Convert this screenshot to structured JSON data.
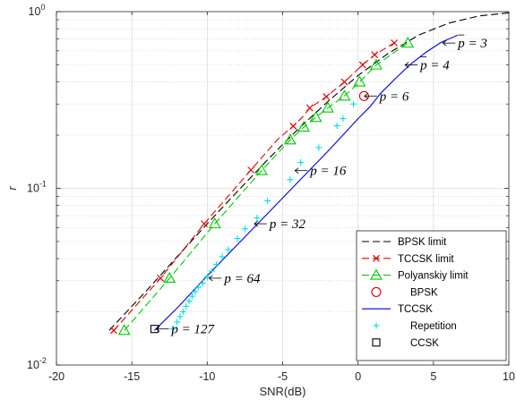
{
  "chart_data": {
    "type": "line",
    "xlabel": "SNR(dB)",
    "ylabel": "r",
    "xlim": [
      -20,
      10
    ],
    "ylim": [
      0.01,
      1
    ],
    "yscale": "log",
    "grid": true,
    "x_ticks": [
      "-20",
      "-15",
      "-10",
      "-5",
      "0",
      "5",
      "10"
    ],
    "y_ticks": [
      {
        "value": 0.01,
        "base": "10",
        "exp": "-2"
      },
      {
        "value": 0.1,
        "base": "10",
        "exp": "-1"
      },
      {
        "value": 1,
        "base": "10",
        "exp": "0"
      }
    ],
    "legend_position": "bottom-right",
    "series": [
      {
        "name": "BPSK limit",
        "color": "#000000",
        "style": "dashed",
        "marker": "none",
        "points": [
          [
            -16.5,
            0.0157
          ],
          [
            -14,
            0.0265
          ],
          [
            -12,
            0.041
          ],
          [
            -10,
            0.063
          ],
          [
            -8,
            0.096
          ],
          [
            -6,
            0.145
          ],
          [
            -4,
            0.215
          ],
          [
            -2,
            0.31
          ],
          [
            0,
            0.435
          ],
          [
            2,
            0.58
          ],
          [
            4,
            0.735
          ],
          [
            6,
            0.86
          ],
          [
            8,
            0.945
          ],
          [
            10,
            0.985
          ]
        ]
      },
      {
        "name": "TCCSK limit",
        "color": "#e00000",
        "style": "dashed",
        "marker": "x",
        "points": [
          [
            -16.2,
            0.0157
          ],
          [
            -13.1,
            0.031
          ],
          [
            -10.2,
            0.063
          ],
          [
            -7.1,
            0.127
          ],
          [
            -5.3,
            0.19
          ],
          [
            -4.3,
            0.225
          ],
          [
            -3.7,
            0.252
          ],
          [
            -3.2,
            0.285
          ],
          [
            -2.1,
            0.33
          ],
          [
            -0.9,
            0.4
          ],
          [
            0.3,
            0.5
          ],
          [
            1.1,
            0.57
          ],
          [
            2.4,
            0.665
          ]
        ],
        "marker_points": [
          [
            -16.2,
            0.0157
          ],
          [
            -13.1,
            0.031
          ],
          [
            -10.2,
            0.063
          ],
          [
            -7.1,
            0.127
          ],
          [
            -4.3,
            0.225
          ],
          [
            -3.2,
            0.285
          ],
          [
            -2.1,
            0.33
          ],
          [
            -0.9,
            0.4
          ],
          [
            0.3,
            0.5
          ],
          [
            1.1,
            0.57
          ],
          [
            2.4,
            0.665
          ]
        ]
      },
      {
        "name": "Polyanskiy limit",
        "color": "#00c800",
        "style": "dashed",
        "marker": "triangle",
        "points": [
          [
            -15.5,
            0.0157
          ],
          [
            -12.5,
            0.031
          ],
          [
            -9.5,
            0.063
          ],
          [
            -6.4,
            0.126
          ],
          [
            -4.5,
            0.188
          ],
          [
            -3.6,
            0.222
          ],
          [
            -2.8,
            0.252
          ],
          [
            -2.0,
            0.285
          ],
          [
            -0.9,
            0.333
          ],
          [
            0.1,
            0.4
          ],
          [
            1.2,
            0.499
          ],
          [
            3.3,
            0.664
          ]
        ]
      },
      {
        "name": "BPSK",
        "color": "#e00000",
        "style": "none",
        "marker": "circle",
        "points": [
          [
            0.4,
            0.333
          ]
        ]
      },
      {
        "name": "TCCSK",
        "color": "#0000e0",
        "style": "solid",
        "marker": "none",
        "points": [
          [
            -13.5,
            0.0157
          ],
          [
            -12,
            0.021
          ],
          [
            -10,
            0.032
          ],
          [
            -8,
            0.048
          ],
          [
            -6,
            0.072
          ],
          [
            -4,
            0.108
          ],
          [
            -2,
            0.162
          ],
          [
            -1,
            0.2
          ],
          [
            0,
            0.248
          ],
          [
            0.8,
            0.29
          ],
          [
            1.5,
            0.345
          ],
          [
            2.5,
            0.42
          ],
          [
            3.5,
            0.505
          ],
          [
            4.5,
            0.588
          ],
          [
            5.5,
            0.67
          ],
          [
            6.6,
            0.735
          ]
        ]
      },
      {
        "name": "Repetition",
        "color": "#00e0e0",
        "style": "none",
        "marker": "plus",
        "points": [
          [
            -12.3,
            0.016
          ],
          [
            -12.0,
            0.0175
          ],
          [
            -11.8,
            0.0188
          ],
          [
            -11.6,
            0.02
          ],
          [
            -11.4,
            0.0215
          ],
          [
            -11.2,
            0.023
          ],
          [
            -11.0,
            0.0245
          ],
          [
            -10.8,
            0.026
          ],
          [
            -10.6,
            0.0275
          ],
          [
            -10.3,
            0.029
          ],
          [
            -10.0,
            0.0315
          ],
          [
            -9.7,
            0.034
          ],
          [
            -9.4,
            0.037
          ],
          [
            -9.0,
            0.041
          ],
          [
            -8.6,
            0.045
          ],
          [
            -8.0,
            0.052
          ],
          [
            -7.5,
            0.059
          ],
          [
            -6.7,
            0.068
          ],
          [
            -6.0,
            0.085
          ],
          [
            -4.5,
            0.112
          ],
          [
            -3.8,
            0.14
          ],
          [
            -2.6,
            0.17
          ],
          [
            -1.4,
            0.226
          ],
          [
            -1.0,
            0.248
          ],
          [
            -0.3,
            0.3
          ]
        ]
      },
      {
        "name": "CCSK",
        "color": "#000000",
        "style": "none",
        "marker": "square",
        "points": [
          [
            -13.5,
            0.016
          ]
        ]
      }
    ],
    "annotations": [
      {
        "text": "p = 127",
        "bar": false,
        "x": -13.5,
        "y": 0.016
      },
      {
        "text": "p = 64",
        "bar": false,
        "x": -10.0,
        "y": 0.031
      },
      {
        "text": "p = 32",
        "bar": false,
        "x": -7.0,
        "y": 0.063
      },
      {
        "text": "p = 16",
        "bar": false,
        "x": -4.3,
        "y": 0.126
      },
      {
        "text": "p = 6",
        "bar": false,
        "x": 0.3,
        "y": 0.333
      },
      {
        "text": "p = 4",
        "bar": true,
        "x": 3.0,
        "y": 0.499
      },
      {
        "text": "p = 3",
        "bar": true,
        "x": 5.5,
        "y": 0.664
      }
    ]
  }
}
